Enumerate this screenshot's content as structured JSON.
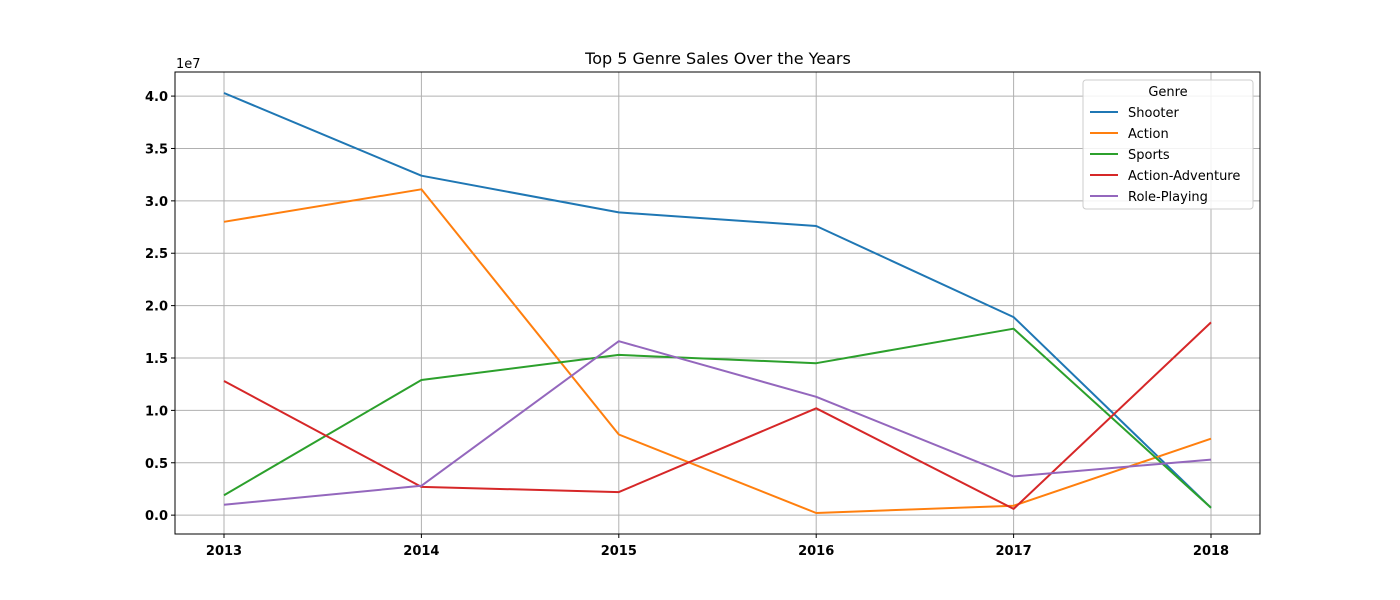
{
  "chart_data": {
    "type": "line",
    "title": "Top 5 Genre Sales Over the Years",
    "xlabel": "",
    "ylabel": "",
    "y_offset_label": "1e7",
    "x": [
      "2013",
      "2014",
      "2015",
      "2016",
      "2017",
      "2018"
    ],
    "y_ticks": [
      "0.0",
      "0.5",
      "1.0",
      "1.5",
      "2.0",
      "2.5",
      "3.0",
      "3.5",
      "4.0"
    ],
    "ylim": [
      -1800000,
      42300000
    ],
    "grid": true,
    "legend": {
      "title": "Genre",
      "placement": "upper-right"
    },
    "series": [
      {
        "name": "Shooter",
        "color": "#1f77b4",
        "values": [
          40300000,
          32400000,
          28900000,
          27600000,
          18900000,
          700000
        ]
      },
      {
        "name": "Action",
        "color": "#ff7f0e",
        "values": [
          28000000,
          31100000,
          7700000,
          200000,
          900000,
          7300000
        ]
      },
      {
        "name": "Sports",
        "color": "#2ca02c",
        "values": [
          1900000,
          12900000,
          15300000,
          14500000,
          17800000,
          700000
        ]
      },
      {
        "name": "Action-Adventure",
        "color": "#d62728",
        "values": [
          12800000,
          2700000,
          2200000,
          10200000,
          600000,
          18400000
        ]
      },
      {
        "name": "Role-Playing",
        "color": "#9467bd",
        "values": [
          1000000,
          2800000,
          16600000,
          11300000,
          3700000,
          5300000
        ]
      }
    ]
  }
}
